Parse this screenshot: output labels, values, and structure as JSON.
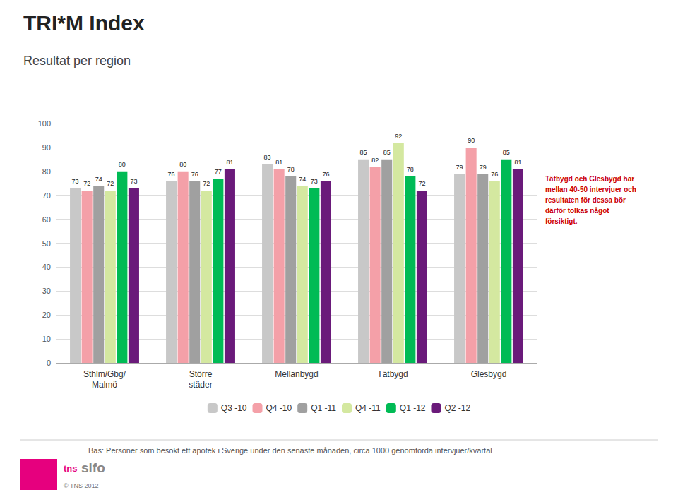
{
  "chart_data": {
    "type": "bar",
    "title": "TRI*M Index",
    "subtitle": "Resultat per region",
    "categories": [
      "Sthlm/Gbg/\nMalmö",
      "Större\nstäder",
      "Mellanbygd",
      "Tätbygd",
      "Glesbygd"
    ],
    "series": [
      {
        "name": "Q3 -10",
        "color": "#c8c8c8",
        "values": [
          73,
          76,
          83,
          85,
          79
        ]
      },
      {
        "name": "Q4 -10",
        "color": "#f4a0a8",
        "values": [
          72,
          80,
          81,
          82,
          90
        ]
      },
      {
        "name": "Q1 -11",
        "color": "#a0a0a0",
        "values": [
          74,
          76,
          78,
          85,
          79
        ]
      },
      {
        "name": "Q4 -11",
        "color": "#d4e8a0",
        "values": [
          72,
          72,
          74,
          92,
          76
        ]
      },
      {
        "name": "Q1 -12",
        "color": "#00bb55",
        "values": [
          80,
          77,
          73,
          78,
          85
        ]
      },
      {
        "name": "Q2 -12",
        "color": "#6a1a7a",
        "values": [
          73,
          81,
          76,
          72,
          81
        ]
      }
    ],
    "ylim": [
      0,
      100
    ],
    "yticks": [
      0,
      10,
      20,
      30,
      40,
      50,
      60,
      70,
      80,
      90,
      100
    ],
    "grid": true,
    "data_labels": true,
    "legend": "bottom",
    "annotations": [
      {
        "text": "Tätbygd och Glesbygd har\nmellan 40-50 intervjuer och\nresultaten för dessa bör\ndärför tolkas något\nförsiktigt.",
        "color": "#cc0000"
      },
      {
        "text": "Bas: Personer som besökt ett apotek i Sverige under den senaste månaden, circa 1000 genomförda intervjuer/kvartal"
      },
      {
        "text": "tns",
        "color": "#e6007e"
      },
      {
        "text": "sifo"
      },
      {
        "text": "© TNS 2012"
      }
    ]
  }
}
